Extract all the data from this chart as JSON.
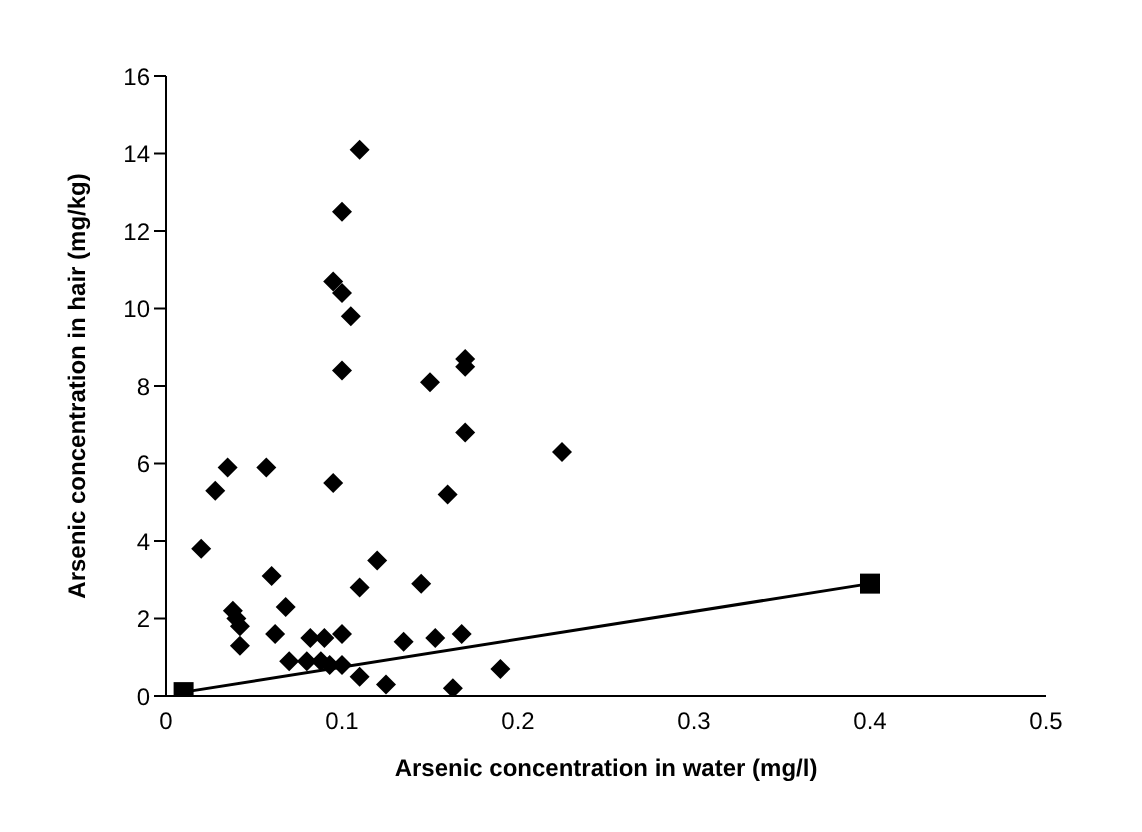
{
  "chart_data": {
    "type": "scatter",
    "xlabel": "Arsenic concentration in water (mg/l)",
    "ylabel": "Arsenic concentration in hair (mg/kg)",
    "xlim": [
      0,
      0.5
    ],
    "xticks": [
      0,
      0.1,
      0.2,
      0.3,
      0.4,
      0.5
    ],
    "ylim": [
      0,
      16
    ],
    "yticks": [
      0,
      2,
      4,
      6,
      8,
      10,
      12,
      14,
      16
    ],
    "series": [
      {
        "color": "#000000",
        "marker": "diamond",
        "x": [
          0.11,
          0.1,
          0.095,
          0.1,
          0.105,
          0.1,
          0.17,
          0.17,
          0.15,
          0.17,
          0.035,
          0.057,
          0.028,
          0.095,
          0.16,
          0.02,
          0.06,
          0.12,
          0.11,
          0.145,
          0.038,
          0.04,
          0.042,
          0.068,
          0.062,
          0.042,
          0.082,
          0.09,
          0.1,
          0.135,
          0.153,
          0.168,
          0.07,
          0.08,
          0.088,
          0.093,
          0.1,
          0.11,
          0.125,
          0.163,
          0.19,
          0.225
        ],
        "values": [
          14.1,
          12.5,
          10.7,
          10.4,
          9.8,
          8.4,
          8.7,
          8.5,
          8.1,
          6.8,
          5.9,
          5.9,
          5.3,
          5.5,
          5.2,
          3.8,
          3.1,
          3.5,
          2.8,
          2.9,
          2.2,
          2.0,
          1.8,
          2.3,
          1.6,
          1.3,
          1.5,
          1.5,
          1.6,
          1.4,
          1.5,
          1.6,
          0.9,
          0.9,
          0.9,
          0.8,
          0.8,
          0.5,
          0.3,
          0.2,
          0.7,
          6.3
        ]
      },
      {
        "type": "line",
        "color": "#000000",
        "marker": "square",
        "line_style": "solid",
        "x": [
          0.01,
          0.4
        ],
        "values": [
          0.1,
          2.9
        ]
      }
    ]
  }
}
